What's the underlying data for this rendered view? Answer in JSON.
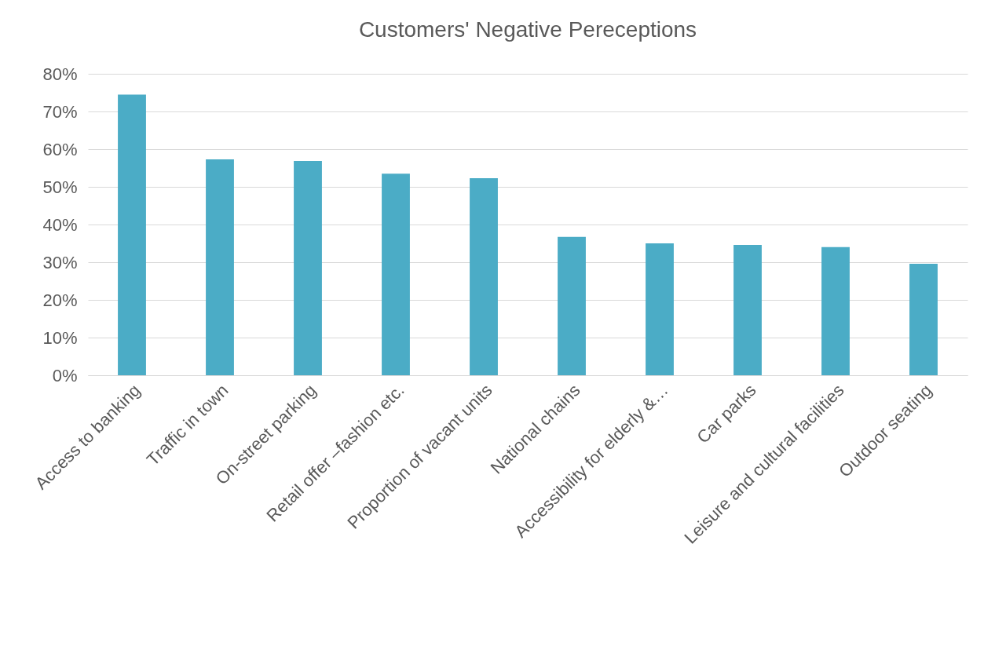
{
  "chart_data": {
    "type": "bar",
    "title": "Customers' Negative Pereceptions",
    "categories": [
      "Access to banking",
      "Traffic in town",
      "On-street parking",
      "Retail offer –fashion etc.",
      "Proportion of vacant units",
      "National chains",
      "Accessibility for elderly &…",
      "Car parks",
      "Leisure and cultural facilities",
      "Outdoor seating"
    ],
    "values": [
      74.5,
      57.3,
      56.9,
      53.5,
      52.3,
      36.7,
      35.0,
      34.6,
      34.0,
      29.6
    ],
    "color": "#4bacc6",
    "ylim": [
      0,
      80
    ],
    "yticks": [
      {
        "value": 0,
        "label": "0%"
      },
      {
        "value": 10,
        "label": "10%"
      },
      {
        "value": 20,
        "label": "20%"
      },
      {
        "value": 30,
        "label": "30%"
      },
      {
        "value": 40,
        "label": "40%"
      },
      {
        "value": 50,
        "label": "50%"
      },
      {
        "value": 60,
        "label": "60%"
      },
      {
        "value": 70,
        "label": "70%"
      },
      {
        "value": 80,
        "label": "80%"
      }
    ],
    "grid": true
  }
}
